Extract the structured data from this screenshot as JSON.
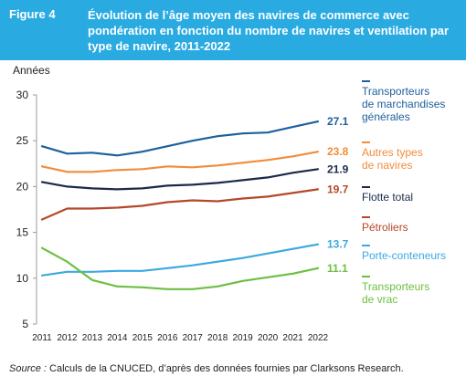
{
  "header": {
    "figure_label": "Figure 4",
    "title": "Évolution de l’âge moyen des navires de commerce avec pondération en fonction du nombre de navires et ventilation par type de navire, 2011-2022"
  },
  "colors": {
    "header_bg": "#29abe2",
    "transporteurs_marchandises": "#1f5f9e",
    "autres_types": "#f28c3a",
    "flotte_total": "#1b2a4a",
    "petroliers": "#b5482a",
    "porte_conteneurs": "#3ba9df",
    "transporteurs_vrac": "#6cbf43"
  },
  "chart_data": {
    "type": "line",
    "ylabel": "Années",
    "ylim": [
      5,
      30
    ],
    "yticks": [
      5,
      10,
      15,
      20,
      25,
      30
    ],
    "grid": false,
    "legend_position": "right",
    "categories": [
      "2011",
      "2012",
      "2013",
      "2014",
      "2015",
      "2016",
      "2017",
      "2018",
      "2019",
      "2020",
      "2021",
      "2022"
    ],
    "series": [
      {
        "name": "Transporteurs de marchandises générales",
        "color": "#1f5f9e",
        "end_label": "27.1",
        "values": [
          24.4,
          23.6,
          23.7,
          23.4,
          23.8,
          24.4,
          25.0,
          25.5,
          25.8,
          25.9,
          26.5,
          27.1
        ]
      },
      {
        "name": "Autres types de navires",
        "color": "#f28c3a",
        "end_label": "23.8",
        "values": [
          22.2,
          21.6,
          21.6,
          21.8,
          21.9,
          22.2,
          22.1,
          22.3,
          22.6,
          22.9,
          23.3,
          23.8
        ]
      },
      {
        "name": "Flotte total",
        "color": "#1b2a4a",
        "end_label": "21.9",
        "values": [
          20.5,
          20.0,
          19.8,
          19.7,
          19.8,
          20.1,
          20.2,
          20.4,
          20.7,
          21.0,
          21.5,
          21.9
        ]
      },
      {
        "name": "Pétroliers",
        "color": "#b5482a",
        "end_label": "19.7",
        "values": [
          16.4,
          17.6,
          17.6,
          17.7,
          17.9,
          18.3,
          18.5,
          18.4,
          18.7,
          18.9,
          19.3,
          19.7
        ]
      },
      {
        "name": "Porte-conteneurs",
        "color": "#3ba9df",
        "end_label": "13.7",
        "values": [
          10.3,
          10.7,
          10.7,
          10.8,
          10.8,
          11.1,
          11.4,
          11.8,
          12.2,
          12.7,
          13.2,
          13.7
        ]
      },
      {
        "name": "Transporteurs de vrac",
        "color": "#6cbf43",
        "end_label": "11.1",
        "values": [
          13.3,
          11.8,
          9.8,
          9.1,
          9.0,
          8.8,
          8.8,
          9.1,
          9.7,
          10.1,
          10.5,
          11.1
        ]
      }
    ]
  },
  "legend": [
    {
      "lines": [
        "Transporteurs",
        "de marchandises",
        "générales"
      ],
      "color": "#1f5f9e"
    },
    {
      "lines": [
        "Autres types",
        "de navires"
      ],
      "color": "#f28c3a"
    },
    {
      "lines": [
        "Flotte total"
      ],
      "color": "#1b2a4a"
    },
    {
      "lines": [
        "Pétroliers"
      ],
      "color": "#b5482a"
    },
    {
      "lines": [
        "Porte-conteneurs"
      ],
      "color": "#3ba9df"
    },
    {
      "lines": [
        "Transporteurs",
        "de vrac"
      ],
      "color": "#6cbf43"
    }
  ],
  "source": {
    "label": "Source :",
    "text": " Calculs de la CNUCED, d’après des données fournies par Clarksons Research."
  }
}
